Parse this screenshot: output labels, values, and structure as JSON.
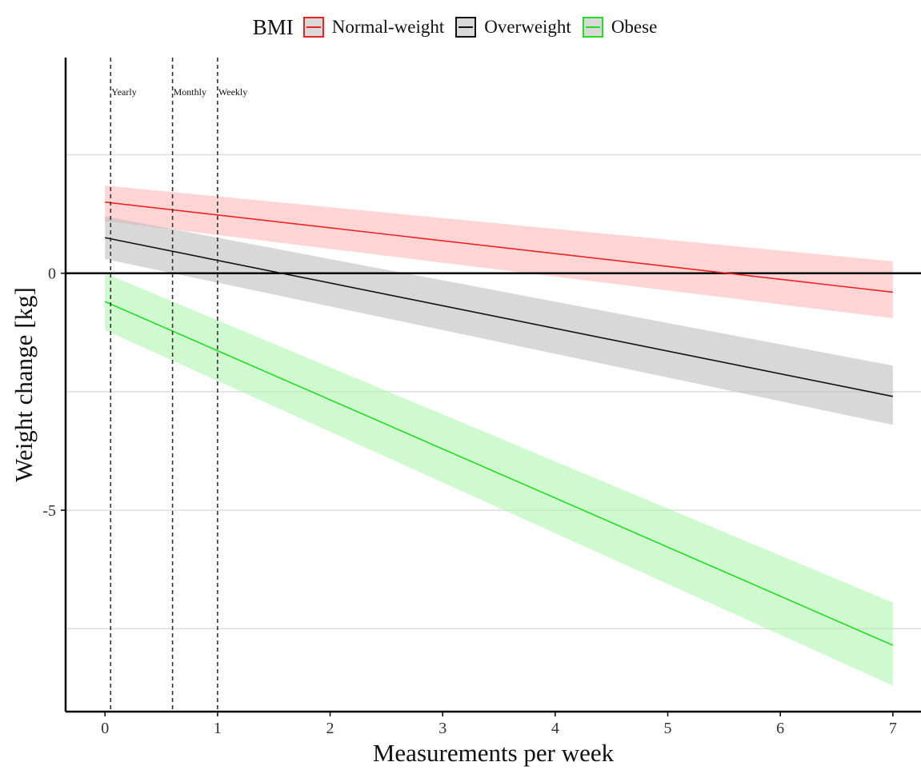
{
  "legend": {
    "title": "BMI",
    "items": [
      {
        "label": "Normal-weight",
        "color": "#ee2222"
      },
      {
        "label": "Overweight",
        "color": "#111111"
      },
      {
        "label": "Obese",
        "color": "#22dd22"
      }
    ]
  },
  "chart_data": {
    "type": "line",
    "title": "",
    "xlabel": "Measurements per week",
    "ylabel": "Weight change [kg]",
    "xlim": [
      -0.35,
      7.25
    ],
    "ylim": [
      -9.25,
      4.55
    ],
    "x_ticks": [
      0,
      1,
      2,
      3,
      4,
      5,
      6,
      7
    ],
    "y_ticks": [
      0,
      -5
    ],
    "y_tick_labels": [
      "0",
      "-5"
    ],
    "grid_y": [
      2.5,
      0,
      -2.5,
      -5,
      -7.5
    ],
    "grid": true,
    "zero_line": 0,
    "legend_position": "top",
    "vlines": [
      {
        "x": 0.05,
        "label": "Yearly"
      },
      {
        "x": 0.6,
        "label": "Monthly"
      },
      {
        "x": 1.0,
        "label": "Weekly"
      }
    ],
    "series": [
      {
        "name": "Normal-weight",
        "color": "#ee2222",
        "band_color": "#ffb3b3",
        "x": [
          0,
          7
        ],
        "y": [
          1.5,
          -0.4
        ],
        "lower": [
          1.1,
          -0.95
        ],
        "upper": [
          1.85,
          0.25
        ]
      },
      {
        "name": "Overweight",
        "color": "#111111",
        "band_color": "#b8b8b8",
        "x": [
          0,
          7
        ],
        "y": [
          0.75,
          -2.6
        ],
        "lower": [
          0.3,
          -3.2
        ],
        "upper": [
          1.2,
          -1.95
        ]
      },
      {
        "name": "Obese",
        "color": "#22dd22",
        "band_color": "#a8f5a8",
        "x": [
          0,
          7
        ],
        "y": [
          -0.6,
          -7.85
        ],
        "lower": [
          -1.2,
          -8.7
        ],
        "upper": [
          0,
          -6.95
        ]
      }
    ]
  }
}
